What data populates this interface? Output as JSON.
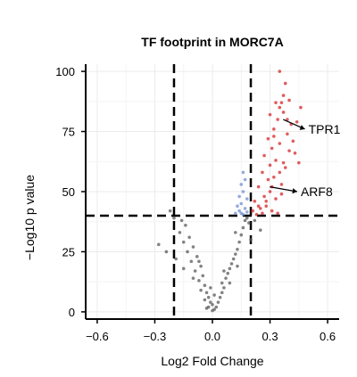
{
  "chart_data": {
    "type": "scatter",
    "title": "TF footprint in MORC7A",
    "xlabel": "Log2 Fold Change",
    "ylabel": "−Log10 p value",
    "xlim": [
      -0.66,
      0.66
    ],
    "ylim": [
      -3,
      103
    ],
    "x_ticks": [
      -0.6,
      -0.3,
      0.0,
      0.3,
      0.6
    ],
    "x_tick_labels": [
      "−0.6",
      "−0.3",
      "0.0",
      "0.3",
      "0.6"
    ],
    "y_ticks": [
      0,
      25,
      50,
      75,
      100
    ],
    "y_tick_labels": [
      "0",
      "25",
      "50",
      "75",
      "100"
    ],
    "grid": true,
    "thresholds": {
      "x": [
        -0.2,
        0.2
      ],
      "y": 40
    },
    "colors": {
      "up": "#d62728",
      "blue": "#6f8fd0",
      "ns": "#5a5a5a"
    },
    "series": [
      {
        "role": "up",
        "points": [
          [
            0.35,
            100
          ],
          [
            0.38,
            95
          ],
          [
            0.37,
            90
          ],
          [
            0.4,
            88
          ],
          [
            0.33,
            87
          ],
          [
            0.35,
            85
          ],
          [
            0.37,
            83
          ],
          [
            0.3,
            82
          ],
          [
            0.34,
            80
          ],
          [
            0.41,
            78
          ],
          [
            0.32,
            76
          ],
          [
            0.39,
            74
          ],
          [
            0.29,
            72
          ],
          [
            0.35,
            70
          ],
          [
            0.31,
            68
          ],
          [
            0.43,
            66
          ],
          [
            0.27,
            65
          ],
          [
            0.33,
            63
          ],
          [
            0.3,
            61
          ],
          [
            0.38,
            60
          ],
          [
            0.26,
            58
          ],
          [
            0.32,
            56
          ],
          [
            0.29,
            55
          ],
          [
            0.36,
            53
          ],
          [
            0.24,
            52
          ],
          [
            0.3,
            50
          ],
          [
            0.27,
            48
          ],
          [
            0.33,
            47
          ],
          [
            0.22,
            46
          ],
          [
            0.28,
            44
          ],
          [
            0.25,
            43
          ],
          [
            0.21,
            42
          ],
          [
            0.31,
            42
          ],
          [
            0.26,
            41
          ],
          [
            0.34,
            41
          ],
          [
            0.23,
            40.5
          ],
          [
            0.46,
            85
          ],
          [
            0.44,
            79
          ],
          [
            0.42,
            71
          ],
          [
            0.4,
            67
          ],
          [
            0.37,
            62
          ],
          [
            0.35,
            58
          ],
          [
            0.31,
            52
          ],
          [
            0.36,
            49
          ],
          [
            0.28,
            46
          ],
          [
            0.24,
            44
          ],
          [
            0.45,
            62
          ],
          [
            0.39,
            80
          ],
          [
            0.36,
            87
          ],
          [
            0.32,
            73
          ]
        ]
      },
      {
        "role": "blue",
        "points": [
          [
            0.16,
            58
          ],
          [
            0.17,
            55
          ],
          [
            0.15,
            53
          ],
          [
            0.16,
            50
          ],
          [
            0.14,
            48
          ],
          [
            0.18,
            47
          ],
          [
            0.15,
            45
          ],
          [
            0.13,
            44
          ],
          [
            0.17,
            43
          ],
          [
            0.14,
            42
          ],
          [
            0.12,
            41
          ],
          [
            0.16,
            40.5
          ],
          [
            0.18,
            41.5
          ],
          [
            0.15,
            41
          ]
        ]
      },
      {
        "role": "ns",
        "points": [
          [
            -0.22,
            42
          ],
          [
            -0.2,
            39
          ],
          [
            -0.16,
            38
          ],
          [
            -0.14,
            36
          ],
          [
            -0.17,
            33
          ],
          [
            -0.12,
            31
          ],
          [
            -0.15,
            29
          ],
          [
            -0.1,
            27
          ],
          [
            -0.13,
            25
          ],
          [
            -0.08,
            23
          ],
          [
            -0.11,
            21
          ],
          [
            -0.06,
            19
          ],
          [
            -0.09,
            17
          ],
          [
            -0.05,
            15
          ],
          [
            -0.07,
            13
          ],
          [
            -0.04,
            11
          ],
          [
            -0.06,
            9
          ],
          [
            -0.03,
            8
          ],
          [
            -0.02,
            6
          ],
          [
            -0.04,
            5
          ],
          [
            -0.01,
            4
          ],
          [
            0.0,
            3
          ],
          [
            -0.02,
            2
          ],
          [
            0.01,
            1
          ],
          [
            0.0,
            0.5
          ],
          [
            0.02,
            2
          ],
          [
            0.03,
            4
          ],
          [
            0.04,
            6
          ],
          [
            0.05,
            8
          ],
          [
            0.06,
            10
          ],
          [
            0.05,
            12
          ],
          [
            0.07,
            14
          ],
          [
            0.08,
            16
          ],
          [
            0.09,
            18
          ],
          [
            0.1,
            20
          ],
          [
            0.11,
            22
          ],
          [
            0.12,
            24
          ],
          [
            0.13,
            26
          ],
          [
            0.14,
            29
          ],
          [
            0.15,
            32
          ],
          [
            0.16,
            35
          ],
          [
            0.17,
            38
          ],
          [
            0.18,
            39
          ],
          [
            0.19,
            37
          ],
          [
            0.22,
            38
          ],
          [
            0.25,
            34
          ],
          [
            -0.28,
            28
          ],
          [
            -0.24,
            25
          ],
          [
            -0.19,
            22
          ],
          [
            0.13,
            19
          ],
          [
            0.09,
            12
          ],
          [
            -0.1,
            14
          ],
          [
            -0.03,
            1.5
          ],
          [
            0.01,
            7
          ],
          [
            -0.07,
            21
          ],
          [
            0.06,
            17
          ],
          [
            0.12,
            33
          ],
          [
            0.2,
            30
          ],
          [
            -0.15,
            18
          ],
          [
            -0.01,
            10
          ]
        ]
      }
    ],
    "annotations": [
      {
        "label": "TPR1",
        "x": 0.35,
        "y": 80,
        "text_x": 0.5,
        "text_y": 76
      },
      {
        "label": "ARF8",
        "x": 0.28,
        "y": 52,
        "text_x": 0.46,
        "text_y": 50
      }
    ]
  }
}
